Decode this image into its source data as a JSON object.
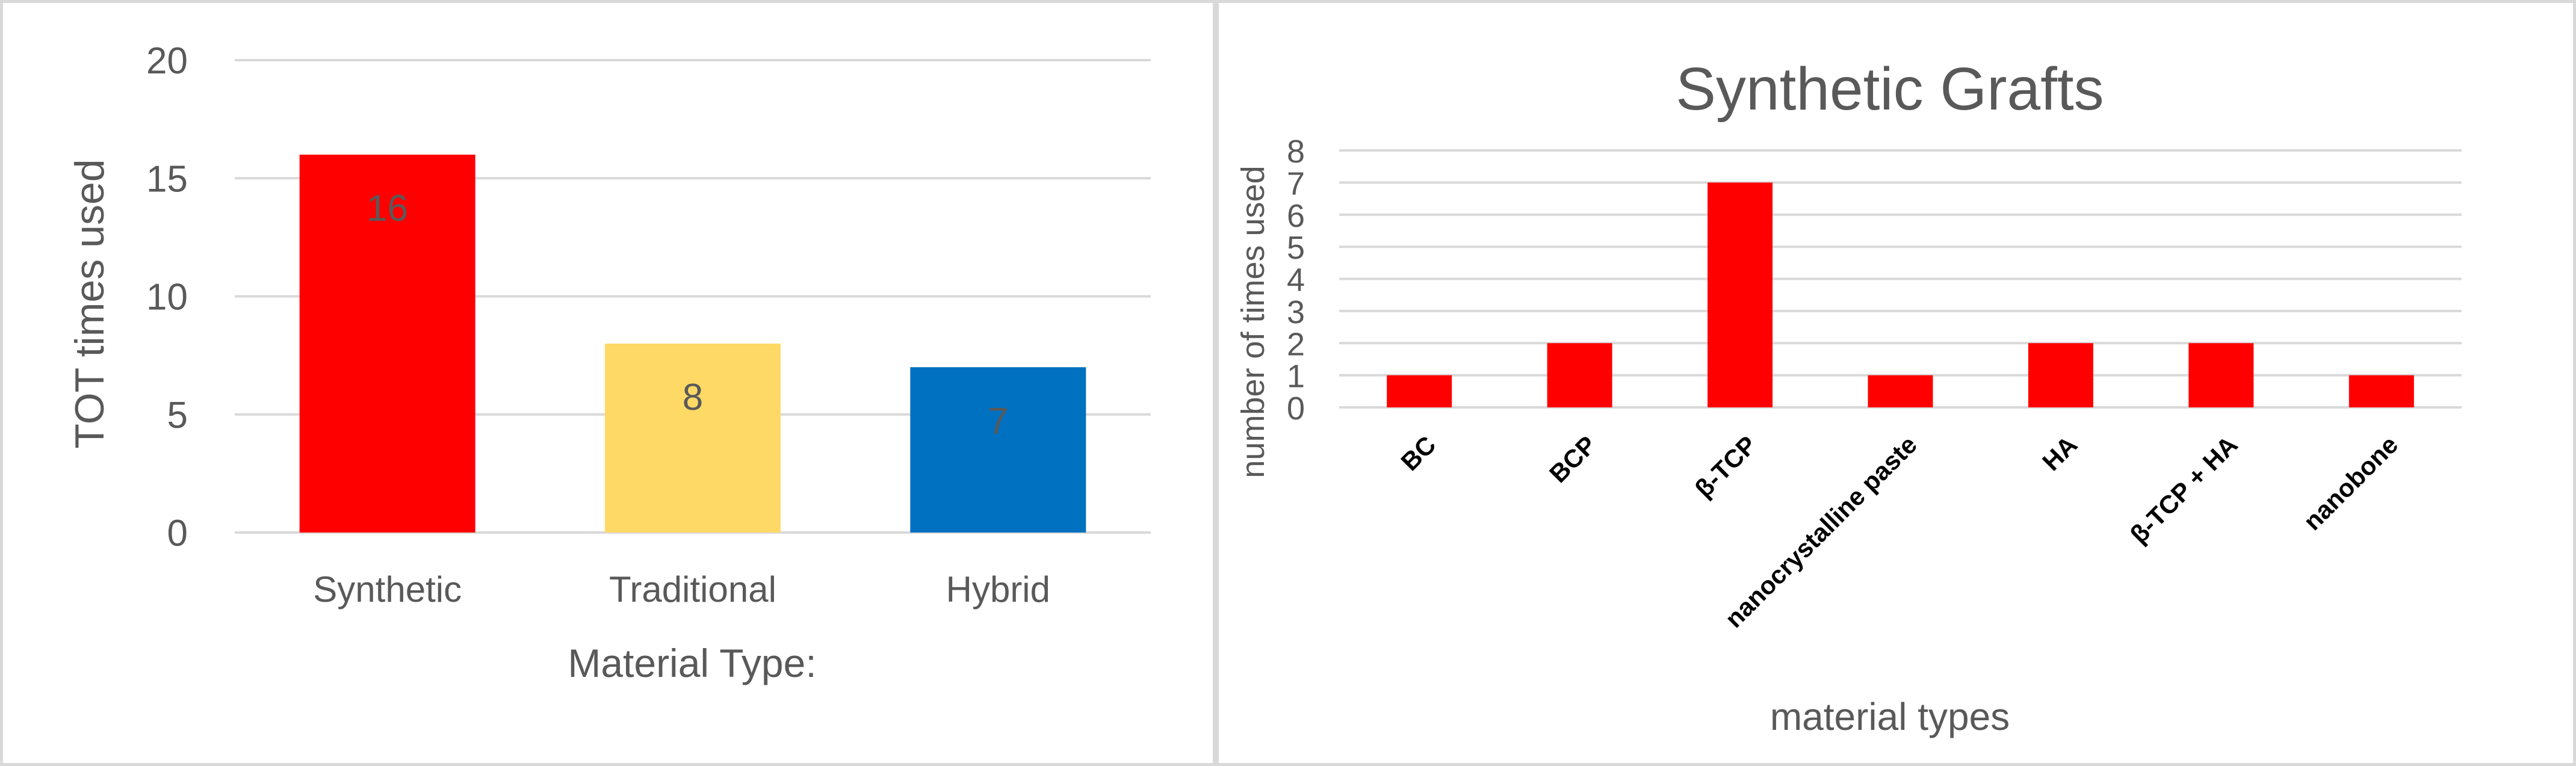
{
  "chart_data": [
    {
      "type": "bar",
      "title": "",
      "categories": [
        "Synthetic",
        "Traditional",
        "Hybrid"
      ],
      "values": [
        16,
        8,
        7
      ],
      "data_labels": [
        "16",
        "8",
        "7"
      ],
      "bar_colors": [
        "#ff0000",
        "#ffd966",
        "#0070c0"
      ],
      "xlabel": "Material Type:",
      "ylabel": "TOT times used",
      "ylim": [
        0,
        20
      ],
      "yticks": [
        "0",
        "5",
        "10",
        "15",
        "20"
      ],
      "grid": true,
      "legend": "none"
    },
    {
      "type": "bar",
      "title": "Synthetic Grafts",
      "categories": [
        "BC",
        "BCP",
        "β-TCP",
        "nanocrystalline paste",
        "HA",
        "β-TCP + HA",
        "nanobone"
      ],
      "values": [
        1,
        2,
        7,
        1,
        2,
        2,
        1
      ],
      "bar_color": "#ff0000",
      "xlabel": "material types",
      "ylabel": "number of times used",
      "ylim": [
        0,
        8
      ],
      "yticks": [
        "0",
        "1",
        "2",
        "3",
        "4",
        "5",
        "6",
        "7",
        "8"
      ],
      "grid": true,
      "legend": "none"
    }
  ]
}
